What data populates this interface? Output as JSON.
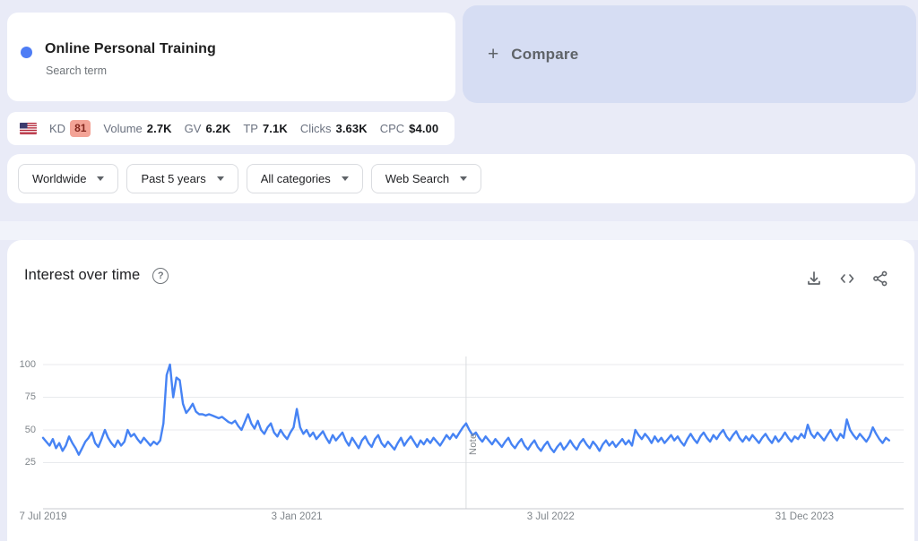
{
  "term_card": {
    "title": "Online Personal Training",
    "subtitle": "Search term",
    "dot_color": "#4e7df5"
  },
  "compare_card": {
    "plus": "+",
    "label": "Compare"
  },
  "metrics_bar": {
    "country_flag": "us-flag",
    "kd_label": "KD",
    "kd_value": "81",
    "kd_badge_color": "#f3a396",
    "items": [
      {
        "label": "Volume",
        "value": "2.7K"
      },
      {
        "label": "GV",
        "value": "6.2K"
      },
      {
        "label": "TP",
        "value": "7.1K"
      },
      {
        "label": "Clicks",
        "value": "3.63K"
      },
      {
        "label": "CPC",
        "value": "$4.00"
      }
    ]
  },
  "filters": [
    {
      "label": "Worldwide"
    },
    {
      "label": "Past 5 years"
    },
    {
      "label": "All categories"
    },
    {
      "label": "Web Search"
    }
  ],
  "chart_section": {
    "title": "Interest over time",
    "actions": [
      "download-icon",
      "embed-icon",
      "share-icon"
    ]
  },
  "chart_data": {
    "type": "line",
    "title": "Interest over time",
    "series_name": "Online Personal Training",
    "x_labels": [
      "7 Jul 2019",
      "3 Jan 2021",
      "3 Jul 2022",
      "31 Dec 2023"
    ],
    "x_label_weeks": [
      0,
      78,
      156,
      234
    ],
    "y_tick_labels": [
      "100",
      "75",
      "50",
      "25"
    ],
    "ylim": [
      0,
      100
    ],
    "grid": "horizontal",
    "legend": "none",
    "note_label": "Note",
    "note_week": 130,
    "line_color": "#4683f4",
    "values": [
      44,
      41,
      38,
      43,
      36,
      40,
      34,
      38,
      45,
      40,
      36,
      31,
      36,
      41,
      44,
      48,
      40,
      37,
      43,
      50,
      44,
      40,
      37,
      42,
      38,
      41,
      50,
      45,
      47,
      43,
      40,
      44,
      41,
      38,
      41,
      39,
      42,
      55,
      92,
      100,
      75,
      90,
      88,
      70,
      63,
      66,
      70,
      64,
      62,
      62,
      61,
      62,
      61,
      60,
      59,
      60,
      58,
      56,
      55,
      57,
      53,
      50,
      56,
      62,
      55,
      51,
      57,
      50,
      47,
      52,
      55,
      48,
      45,
      50,
      46,
      43,
      48,
      52,
      66,
      52,
      47,
      50,
      45,
      48,
      43,
      46,
      49,
      44,
      40,
      46,
      42,
      45,
      48,
      42,
      38,
      44,
      40,
      36,
      42,
      45,
      40,
      37,
      43,
      46,
      40,
      37,
      41,
      38,
      35,
      40,
      44,
      38,
      42,
      45,
      41,
      37,
      42,
      39,
      43,
      40,
      44,
      41,
      38,
      42,
      46,
      43,
      47,
      44,
      48,
      52,
      55,
      50,
      46,
      48,
      44,
      41,
      45,
      42,
      39,
      43,
      40,
      37,
      41,
      44,
      39,
      36,
      40,
      43,
      38,
      35,
      39,
      42,
      37,
      34,
      38,
      41,
      36,
      33,
      37,
      40,
      35,
      38,
      42,
      38,
      35,
      40,
      43,
      39,
      36,
      41,
      38,
      34,
      39,
      42,
      38,
      41,
      37,
      40,
      43,
      39,
      42,
      38,
      50,
      46,
      43,
      47,
      44,
      40,
      45,
      41,
      44,
      40,
      43,
      46,
      42,
      45,
      41,
      38,
      43,
      47,
      43,
      40,
      45,
      48,
      44,
      41,
      46,
      43,
      47,
      50,
      45,
      42,
      46,
      49,
      44,
      41,
      45,
      42,
      46,
      43,
      40,
      44,
      47,
      43,
      40,
      45,
      41,
      44,
      48,
      44,
      41,
      45,
      43,
      47,
      44,
      54,
      47,
      44,
      48,
      45,
      42,
      46,
      50,
      45,
      42,
      47,
      44,
      58,
      50,
      46,
      43,
      47,
      44,
      41,
      45,
      52,
      47,
      43,
      40,
      44,
      42
    ]
  }
}
